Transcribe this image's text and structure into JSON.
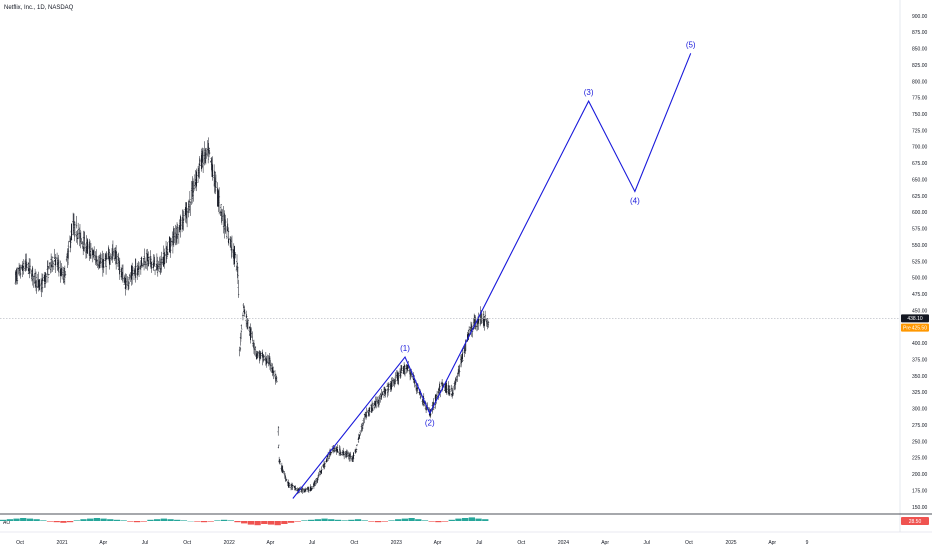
{
  "header": {
    "title": "Netflix, Inc., 1D, NASDAQ"
  },
  "chart_data": {
    "type": "candlestick",
    "title": "Netflix, Inc., 1D, NASDAQ",
    "ylim": [
      140,
      905
    ],
    "y_ticks": [
      "900.00",
      "875.00",
      "850.00",
      "825.00",
      "800.00",
      "775.00",
      "750.00",
      "725.00",
      "700.00",
      "675.00",
      "650.00",
      "625.00",
      "600.00",
      "575.00",
      "550.00",
      "525.00",
      "500.00",
      "475.00",
      "450.00",
      "425.00",
      "400.00",
      "375.00",
      "350.00",
      "325.00",
      "300.00",
      "275.00",
      "250.00",
      "225.00",
      "200.00",
      "175.00",
      "150.00"
    ],
    "x_ticks": [
      "Oct",
      "2021",
      "Apr",
      "Jul",
      "Oct",
      "2022",
      "Apr",
      "Jul",
      "Oct",
      "2023",
      "Apr",
      "Jul",
      "Oct",
      "2024",
      "Apr",
      "Jul",
      "Oct",
      "2025",
      "Apr",
      "9"
    ],
    "price_path": [
      {
        "x": "2020-09-20",
        "y": 500
      },
      {
        "x": "2020-10-15",
        "y": 520
      },
      {
        "x": "2020-11-15",
        "y": 485
      },
      {
        "x": "2020-12-15",
        "y": 530
      },
      {
        "x": "2021-01-05",
        "y": 500
      },
      {
        "x": "2021-01-25",
        "y": 580
      },
      {
        "x": "2021-02-25",
        "y": 545
      },
      {
        "x": "2021-03-30",
        "y": 520
      },
      {
        "x": "2021-04-25",
        "y": 540
      },
      {
        "x": "2021-05-20",
        "y": 490
      },
      {
        "x": "2021-07-01",
        "y": 530
      },
      {
        "x": "2021-08-01",
        "y": 515
      },
      {
        "x": "2021-09-01",
        "y": 560
      },
      {
        "x": "2021-10-01",
        "y": 600
      },
      {
        "x": "2021-11-01",
        "y": 680
      },
      {
        "x": "2021-11-18",
        "y": 690
      },
      {
        "x": "2021-12-15",
        "y": 600
      },
      {
        "x": "2022-01-10",
        "y": 540
      },
      {
        "x": "2022-01-20",
        "y": 510
      },
      {
        "x": "2022-01-24",
        "y": 390
      },
      {
        "x": "2022-02-01",
        "y": 455
      },
      {
        "x": "2022-03-01",
        "y": 385
      },
      {
        "x": "2022-04-01",
        "y": 370
      },
      {
        "x": "2022-04-15",
        "y": 340
      },
      {
        "x": "2022-04-20",
        "y": 220
      },
      {
        "x": "2022-05-10",
        "y": 185
      },
      {
        "x": "2022-06-01",
        "y": 175
      },
      {
        "x": "2022-07-01",
        "y": 178
      },
      {
        "x": "2022-08-15",
        "y": 240
      },
      {
        "x": "2022-09-30",
        "y": 225
      },
      {
        "x": "2022-10-25",
        "y": 290
      },
      {
        "x": "2022-12-01",
        "y": 320
      },
      {
        "x": "2023-01-25",
        "y": 365
      },
      {
        "x": "2023-03-15",
        "y": 292
      },
      {
        "x": "2023-04-10",
        "y": 335
      },
      {
        "x": "2023-05-05",
        "y": 325
      },
      {
        "x": "2023-06-10",
        "y": 420
      },
      {
        "x": "2023-07-05",
        "y": 440
      },
      {
        "x": "2023-07-22",
        "y": 430
      }
    ],
    "last_price": "438.10",
    "last_price_label": "438.10",
    "pre_label": "Pre",
    "pre_price": "425.50",
    "elliott_wave": [
      {
        "label": "",
        "x": "2022-05-20",
        "y": 163
      },
      {
        "label": "(1)",
        "x": "2023-01-20",
        "y": 379
      },
      {
        "label": "(2)",
        "x": "2023-03-15",
        "y": 293
      },
      {
        "label": "(3)",
        "x": "2024-02-25",
        "y": 770
      },
      {
        "label": "(4)",
        "x": "2024-06-05",
        "y": 632
      },
      {
        "label": "(5)",
        "x": "2024-10-05",
        "y": 843
      }
    ],
    "indicator": {
      "name": "AO",
      "value": "28.50",
      "bars": [
        2,
        3,
        4,
        5,
        4,
        3,
        1,
        -1,
        -2,
        -3,
        -2,
        1,
        3,
        4,
        5,
        4,
        3,
        2,
        1,
        -1,
        -2,
        -1,
        2,
        3,
        4,
        3,
        2,
        1,
        0,
        -1,
        -2,
        -1,
        1,
        2,
        1,
        -2,
        -4,
        -6,
        -7,
        -5,
        -6,
        -7,
        -5,
        -3,
        -1,
        1,
        2,
        3,
        4,
        3,
        2,
        1,
        2,
        3,
        1,
        -1,
        -2,
        -1,
        1,
        3,
        4,
        5,
        3,
        1,
        -1,
        -2,
        -1,
        2,
        4,
        5,
        6,
        4,
        3
      ],
      "positive_color": "#26a69a",
      "negative_color": "#ef5350",
      "badge_color": "#ef5350"
    },
    "colors": {
      "candles": "#131722",
      "wave_line": "#1a1adb",
      "wave_label": "#1a1adb",
      "pre_badge": "#ff9800",
      "price_badge": "#131722"
    }
  }
}
